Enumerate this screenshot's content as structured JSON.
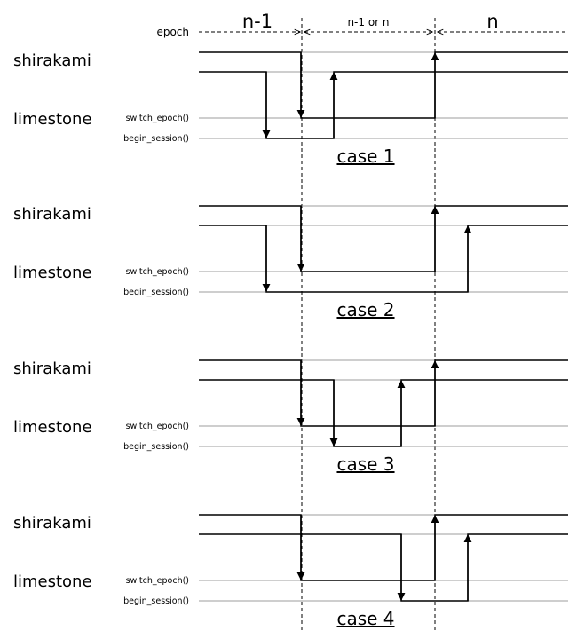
{
  "header": {
    "left_label": "n-1",
    "middle_label": "n-1 or n",
    "right_label": "n",
    "epoch_label": "epoch"
  },
  "lane_labels": {
    "shirakami": "shirakami",
    "limestone": "limestone",
    "switch_epoch": "switch_epoch()",
    "begin_session": "begin_session()"
  },
  "cases": [
    {
      "label": "case 1"
    },
    {
      "label": "case 2"
    },
    {
      "label": "case 3"
    },
    {
      "label": "case 4"
    }
  ]
}
